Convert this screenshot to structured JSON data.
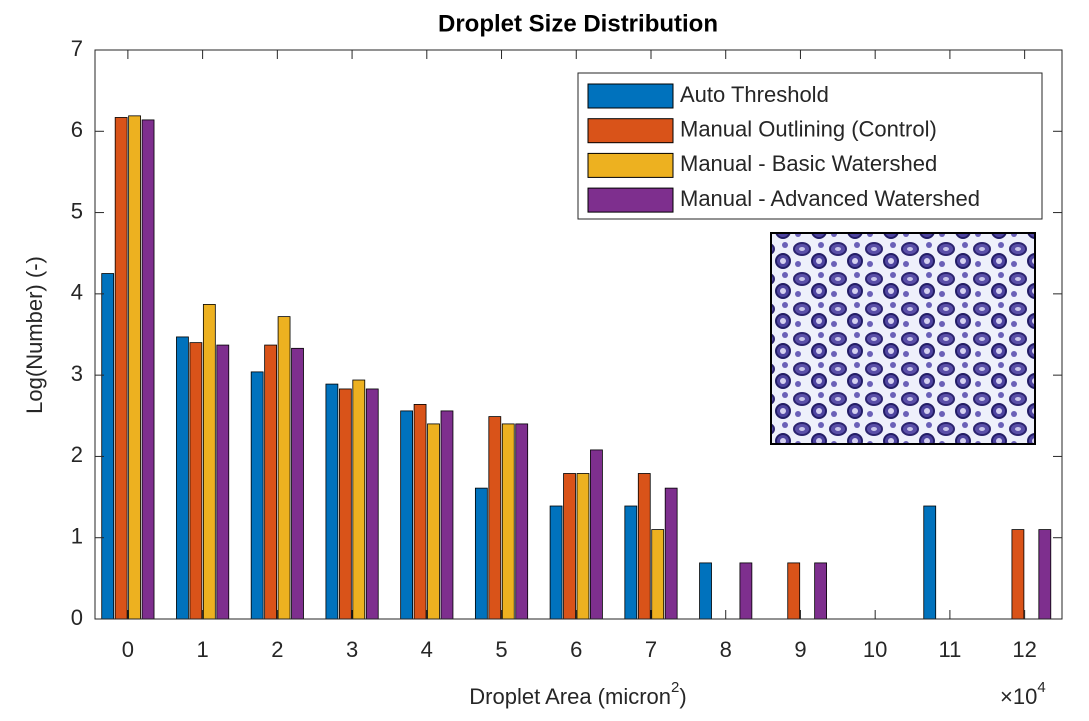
{
  "chart_data": {
    "type": "bar",
    "title": "Droplet Size Distribution",
    "ylabel": "Log(Number) (-)",
    "xlabel": {
      "text": "Droplet Area (micron",
      "sup": "2",
      "tail": ")"
    },
    "x_multiplier": {
      "text": "×10",
      "sup": "4"
    },
    "x": [
      0,
      1,
      2,
      3,
      4,
      5,
      6,
      7,
      8,
      9,
      10,
      11,
      12
    ],
    "xlim": [
      -0.44,
      12.5
    ],
    "xticks": [
      0,
      1,
      2,
      3,
      4,
      5,
      6,
      7,
      8,
      9,
      10,
      11,
      12
    ],
    "ylim": [
      0,
      7
    ],
    "yticks": [
      0,
      1,
      2,
      3,
      4,
      5,
      6,
      7
    ],
    "grid": false,
    "legend": "upper right",
    "series": [
      {
        "name": "Auto Threshold",
        "color": "#0072BD",
        "values": [
          4.25,
          3.47,
          3.04,
          2.89,
          2.56,
          1.61,
          1.39,
          1.39,
          0.69,
          0,
          0,
          1.39,
          0
        ]
      },
      {
        "name": "Manual Outlining (Control)",
        "color": "#D95319",
        "values": [
          6.17,
          3.4,
          3.37,
          2.83,
          2.64,
          2.49,
          1.79,
          1.79,
          0,
          0.69,
          0,
          0,
          1.1
        ]
      },
      {
        "name": "Manual - Basic Watershed",
        "color": "#EDB120",
        "values": [
          6.19,
          3.87,
          3.72,
          2.94,
          2.4,
          2.4,
          1.79,
          1.1,
          0,
          0,
          0,
          0,
          0
        ]
      },
      {
        "name": "Manual - Advanced Watershed",
        "color": "#7E2F8E",
        "values": [
          6.14,
          3.37,
          3.33,
          2.83,
          2.56,
          2.4,
          2.08,
          1.61,
          0.69,
          0.69,
          0,
          0,
          1.1
        ]
      }
    ]
  }
}
